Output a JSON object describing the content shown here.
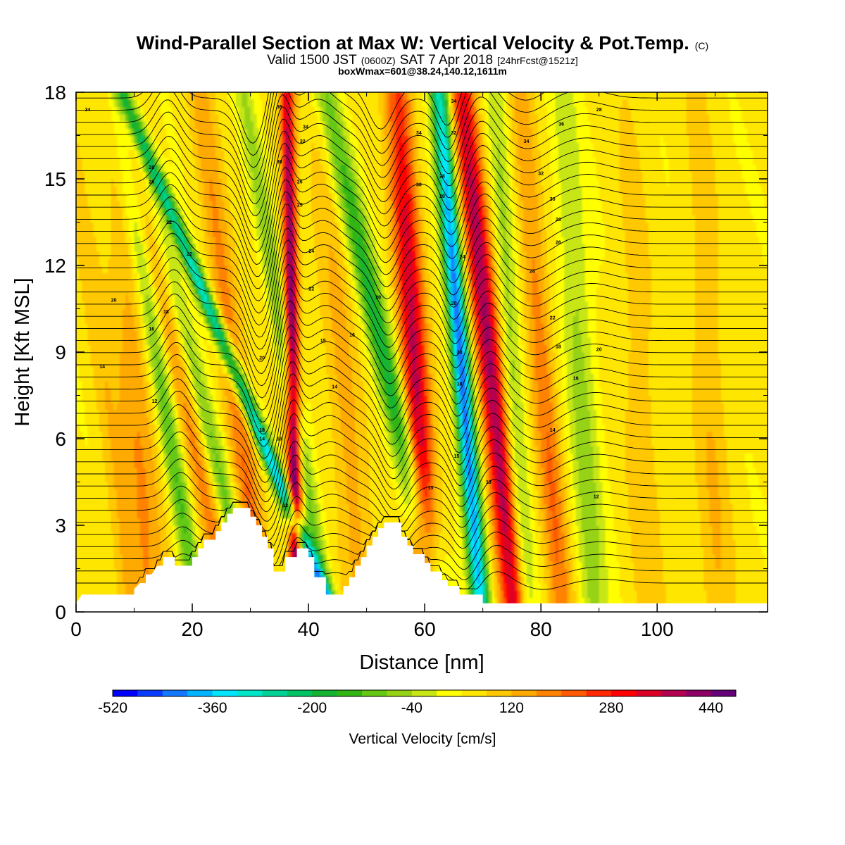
{
  "chart_data": {
    "type": "heatmap",
    "title": {
      "main": "Wind-Parallel Section at Max W: Vertical Velocity & Pot.Temp.",
      "copyright": "(C)"
    },
    "subtitle": {
      "valid_prefix": "Valid 1500 JST",
      "utc": "(0600Z)",
      "date": "SAT 7 Apr 2018",
      "forecast": "[24hrFcst@1521z]"
    },
    "subsubtitle": "boxWmax=601@38.24,140.12,1611m",
    "xlabel": "Distance [nm]",
    "ylabel": "Height [Kft MSL]",
    "xlim": [
      0,
      119
    ],
    "ylim": [
      0,
      18
    ],
    "x_ticks": [
      "0",
      "20",
      "40",
      "60",
      "80",
      "100"
    ],
    "y_ticks": [
      "0",
      "3",
      "6",
      "9",
      "12",
      "15",
      "18"
    ],
    "colorbar": {
      "title": "Vertical Velocity [cm/s]",
      "tick_labels": [
        "-520",
        "-360",
        "-200",
        "-40",
        "120",
        "280",
        "440"
      ],
      "colors": [
        "#0000ff",
        "#0a3cff",
        "#1478ff",
        "#00b4ff",
        "#00e6ff",
        "#00e6c8",
        "#00d296",
        "#00c364",
        "#14b432",
        "#32b414",
        "#64c814",
        "#96d214",
        "#c8e614",
        "#ffff00",
        "#ffe600",
        "#ffc800",
        "#ffaa00",
        "#ff8200",
        "#ff5a00",
        "#ff2800",
        "#ff0000",
        "#dc0028",
        "#b40050",
        "#8c0064",
        "#640078"
      ]
    },
    "terrain_kft": [
      [
        0,
        0.3
      ],
      [
        1,
        0.6
      ],
      [
        10,
        0.6
      ],
      [
        10,
        0.8
      ],
      [
        11,
        1.0
      ],
      [
        12,
        1.0
      ],
      [
        12,
        1.3
      ],
      [
        13,
        1.3
      ],
      [
        14,
        1.6
      ],
      [
        15,
        1.6
      ],
      [
        15,
        1.9
      ],
      [
        17,
        1.9
      ],
      [
        17,
        1.6
      ],
      [
        20,
        1.6
      ],
      [
        20,
        1.9
      ],
      [
        21,
        1.9
      ],
      [
        21,
        2.2
      ],
      [
        22,
        2.2
      ],
      [
        22,
        2.5
      ],
      [
        24,
        2.5
      ],
      [
        24,
        2.8
      ],
      [
        25,
        2.8
      ],
      [
        25,
        3.1
      ],
      [
        26,
        3.1
      ],
      [
        26,
        3.4
      ],
      [
        27,
        3.4
      ],
      [
        27,
        3.6
      ],
      [
        30,
        3.6
      ],
      [
        30,
        3.3
      ],
      [
        31,
        3.3
      ],
      [
        31,
        3.0
      ],
      [
        32,
        3.0
      ],
      [
        32,
        2.6
      ],
      [
        33,
        2.6
      ],
      [
        33,
        2.2
      ],
      [
        34,
        2.2
      ],
      [
        34,
        1.4
      ],
      [
        36,
        1.4
      ],
      [
        36,
        1.9
      ],
      [
        38,
        1.9
      ],
      [
        38,
        2.2
      ],
      [
        40,
        2.2
      ],
      [
        40,
        1.9
      ],
      [
        41,
        1.9
      ],
      [
        41,
        1.2
      ],
      [
        43,
        1.2
      ],
      [
        43,
        0.6
      ],
      [
        46,
        0.6
      ],
      [
        46,
        0.9
      ],
      [
        47,
        0.9
      ],
      [
        47,
        1.2
      ],
      [
        48,
        1.2
      ],
      [
        48,
        1.6
      ],
      [
        49,
        1.6
      ],
      [
        49,
        1.9
      ],
      [
        50,
        1.9
      ],
      [
        50,
        2.3
      ],
      [
        51,
        2.3
      ],
      [
        51,
        2.6
      ],
      [
        52,
        2.6
      ],
      [
        52,
        2.9
      ],
      [
        53,
        2.9
      ],
      [
        53,
        3.1
      ],
      [
        56,
        3.1
      ],
      [
        56,
        2.6
      ],
      [
        57,
        2.6
      ],
      [
        57,
        2.3
      ],
      [
        58,
        2.3
      ],
      [
        58,
        2.0
      ],
      [
        60,
        2.0
      ],
      [
        60,
        1.7
      ],
      [
        61,
        1.7
      ],
      [
        61,
        1.4
      ],
      [
        63,
        1.4
      ],
      [
        63,
        1.1
      ],
      [
        64,
        1.1
      ],
      [
        64,
        0.9
      ],
      [
        66,
        0.9
      ],
      [
        66,
        0.6
      ],
      [
        70,
        0.6
      ],
      [
        70,
        0.3
      ],
      [
        119,
        0.3
      ]
    ],
    "vertical_velocity_features": [
      {
        "x": 0,
        "w": 6,
        "alt": 1,
        "tilt": 0,
        "v": 0
      },
      {
        "x": 7,
        "w": 2,
        "alt": 4,
        "tilt": 0.6,
        "v": 60
      },
      {
        "x": 12,
        "w": 3.5,
        "alt": 2,
        "tilt": 0.3,
        "v": 110
      },
      {
        "x": 17,
        "w": 1.8,
        "alt": 5,
        "tilt": 0.8,
        "v": -170
      },
      {
        "x": 22,
        "w": 2.5,
        "alt": 4.5,
        "tilt": 1.0,
        "v": 150
      },
      {
        "x": 26,
        "w": 2,
        "alt": 3.5,
        "tilt": 1.2,
        "v": -190
      },
      {
        "x": 30,
        "w": 2.3,
        "alt": 3.5,
        "tilt": 0.6,
        "v": 160
      },
      {
        "x": 34,
        "w": 1.4,
        "alt": 5,
        "tilt": 2.0,
        "v": -380
      },
      {
        "x": 37.5,
        "w": 1.2,
        "alt": 6,
        "tilt": 0.1,
        "v": 440
      },
      {
        "x": 40,
        "w": 1.6,
        "alt": 4,
        "tilt": 0.8,
        "v": -150
      },
      {
        "x": 48,
        "w": 3,
        "alt": 3,
        "tilt": 0.4,
        "v": 90
      },
      {
        "x": 55,
        "w": 2.2,
        "alt": 7,
        "tilt": 1.1,
        "v": -230
      },
      {
        "x": 59,
        "w": 2.3,
        "alt": 6,
        "tilt": 0.3,
        "v": 330
      },
      {
        "x": 66.5,
        "w": 1.6,
        "alt": 8,
        "tilt": 0.4,
        "v": -480
      },
      {
        "x": 71.5,
        "w": 2.2,
        "alt": 8,
        "tilt": 0.5,
        "v": 360
      },
      {
        "x": 76,
        "w": 1.8,
        "alt": 5,
        "tilt": 0.3,
        "v": -120
      },
      {
        "x": 82,
        "w": 2.2,
        "alt": 4,
        "tilt": 0.4,
        "v": 150
      },
      {
        "x": 88,
        "w": 2.5,
        "alt": 4,
        "tilt": 0.3,
        "v": -110
      },
      {
        "x": 98,
        "w": 3,
        "alt": 3,
        "tilt": 0.2,
        "v": 60
      },
      {
        "x": 110,
        "w": 3,
        "alt": 3,
        "tilt": 0.2,
        "v": 70
      }
    ],
    "potential_temperature_labels": [
      {
        "text": "34",
        "x": 2,
        "y": 17.4
      },
      {
        "text": "36",
        "x": 35,
        "y": 17.5
      },
      {
        "text": "34",
        "x": 39.5,
        "y": 16.8
      },
      {
        "text": "32",
        "x": 39,
        "y": 16.3
      },
      {
        "text": "30",
        "x": 35,
        "y": 15.6
      },
      {
        "text": "28",
        "x": 13,
        "y": 15.4
      },
      {
        "text": "26",
        "x": 13,
        "y": 14.9
      },
      {
        "text": "26",
        "x": 38.5,
        "y": 14.9
      },
      {
        "text": "25",
        "x": 38.5,
        "y": 14.1
      },
      {
        "text": "22",
        "x": 16,
        "y": 13.5
      },
      {
        "text": "22",
        "x": 19.5,
        "y": 12.4
      },
      {
        "text": "24",
        "x": 40.5,
        "y": 12.5
      },
      {
        "text": "22",
        "x": 40.5,
        "y": 11.2
      },
      {
        "text": "20",
        "x": 6.5,
        "y": 10.8
      },
      {
        "text": "18",
        "x": 15.5,
        "y": 10.4
      },
      {
        "text": "16",
        "x": 13,
        "y": 9.8
      },
      {
        "text": "15",
        "x": 42.5,
        "y": 9.4
      },
      {
        "text": "16",
        "x": 47.5,
        "y": 9.6
      },
      {
        "text": "14",
        "x": 4.5,
        "y": 8.5
      },
      {
        "text": "20",
        "x": 32,
        "y": 8.8
      },
      {
        "text": "12",
        "x": 13.5,
        "y": 7.3
      },
      {
        "text": "14",
        "x": 44.5,
        "y": 7.8
      },
      {
        "text": "18",
        "x": 32,
        "y": 6.3
      },
      {
        "text": "14",
        "x": 32,
        "y": 6.0
      },
      {
        "text": "16",
        "x": 35,
        "y": 6.0
      },
      {
        "text": "12",
        "x": 36,
        "y": 3.7
      },
      {
        "text": "34",
        "x": 65,
        "y": 17.7
      },
      {
        "text": "34",
        "x": 59,
        "y": 16.6
      },
      {
        "text": "32",
        "x": 65,
        "y": 16.6
      },
      {
        "text": "36",
        "x": 83.5,
        "y": 16.9
      },
      {
        "text": "28",
        "x": 90,
        "y": 17.4
      },
      {
        "text": "34",
        "x": 77.5,
        "y": 16.3
      },
      {
        "text": "32",
        "x": 80,
        "y": 15.2
      },
      {
        "text": "30",
        "x": 59,
        "y": 14.8
      },
      {
        "text": "28",
        "x": 63,
        "y": 15.1
      },
      {
        "text": "28",
        "x": 63,
        "y": 14.4
      },
      {
        "text": "30",
        "x": 82,
        "y": 14.3
      },
      {
        "text": "28",
        "x": 83,
        "y": 13.6
      },
      {
        "text": "26",
        "x": 83,
        "y": 12.8
      },
      {
        "text": "24",
        "x": 66.5,
        "y": 12.3
      },
      {
        "text": "24",
        "x": 78.5,
        "y": 11.8
      },
      {
        "text": "20",
        "x": 52,
        "y": 10.9
      },
      {
        "text": "20",
        "x": 65,
        "y": 10.7
      },
      {
        "text": "22",
        "x": 82,
        "y": 10.2
      },
      {
        "text": "18",
        "x": 83,
        "y": 9.2
      },
      {
        "text": "20",
        "x": 90,
        "y": 9.1
      },
      {
        "text": "20",
        "x": 66,
        "y": 9.0
      },
      {
        "text": "18",
        "x": 66,
        "y": 7.9
      },
      {
        "text": "16",
        "x": 86,
        "y": 8.1
      },
      {
        "text": "14",
        "x": 82,
        "y": 6.3
      },
      {
        "text": "15",
        "x": 65.5,
        "y": 5.4
      },
      {
        "text": "13",
        "x": 71,
        "y": 4.5
      },
      {
        "text": "13",
        "x": 61,
        "y": 4.3
      },
      {
        "text": "12",
        "x": 89.5,
        "y": 4.0
      }
    ]
  }
}
